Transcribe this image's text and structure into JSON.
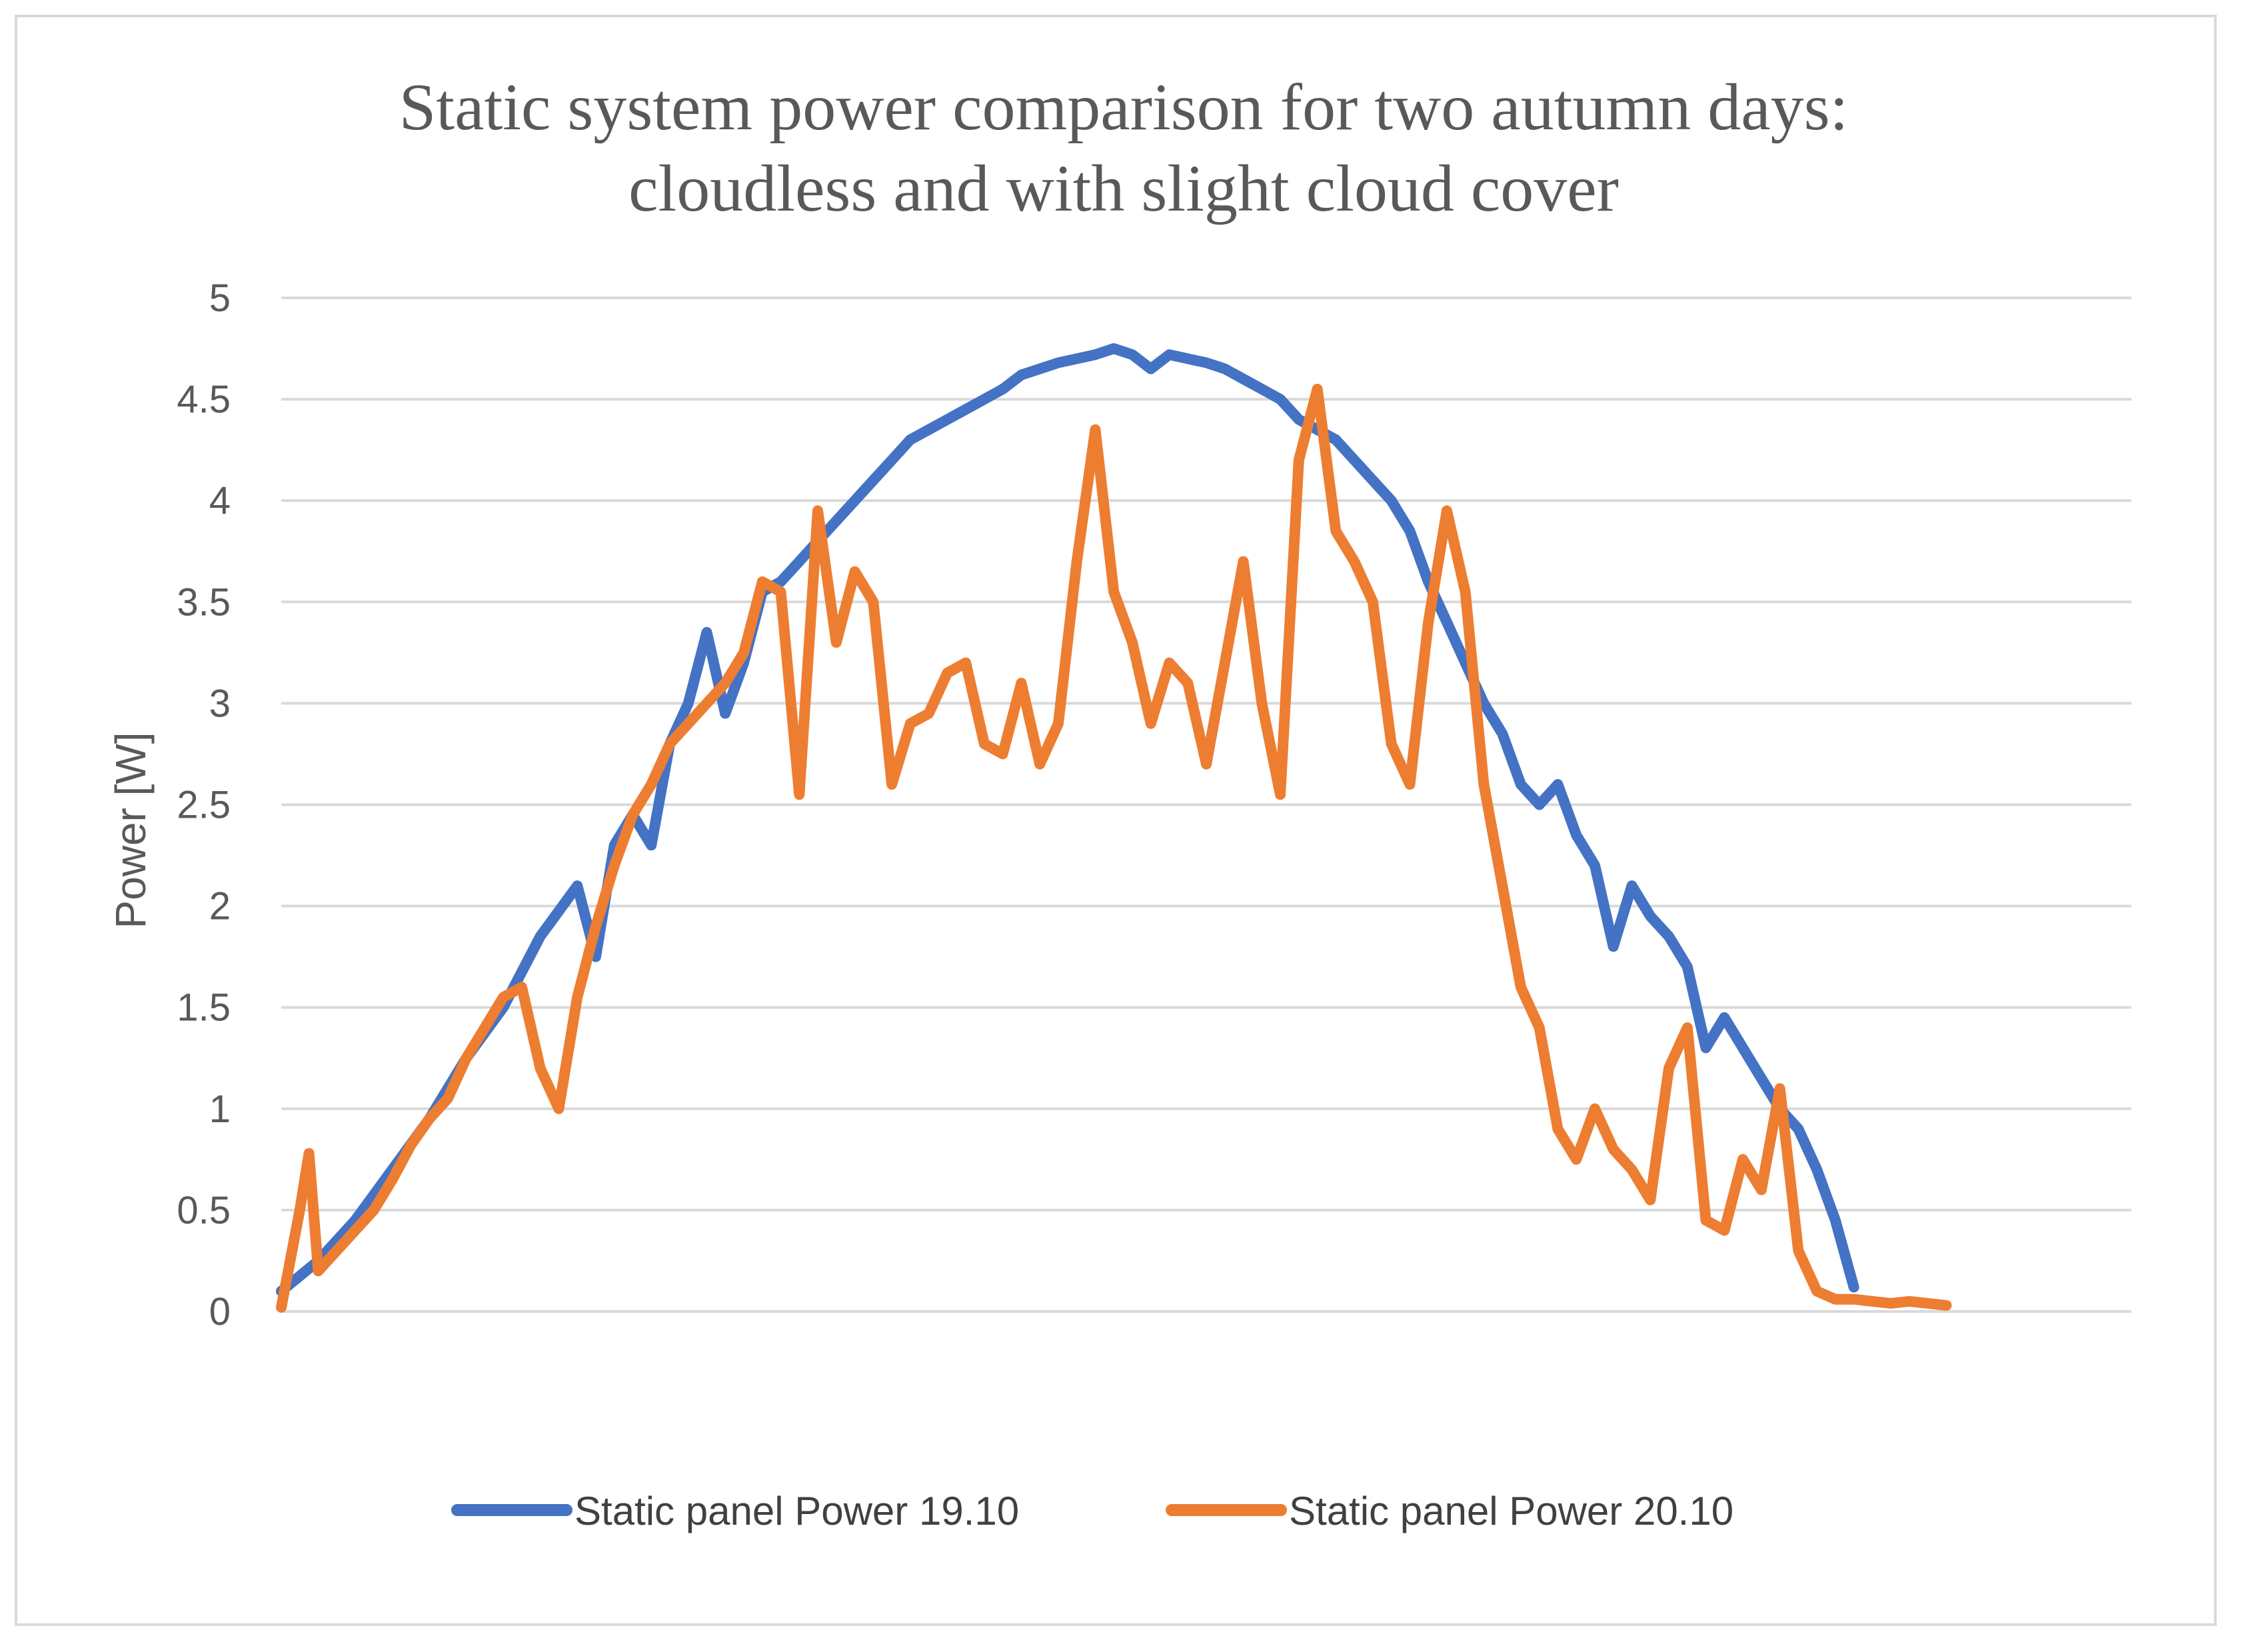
{
  "chart_data": {
    "type": "line",
    "title": "Static system power comparison for two autumn days: cloudless and with slight cloud cover",
    "title_lines": [
      "Static system power comparison for two autumn days:",
      "cloudless and with slight cloud cover"
    ],
    "xlabel": "",
    "ylabel": "Power [W]",
    "ylim": [
      0,
      5
    ],
    "yticks": [
      0,
      0.5,
      1,
      1.5,
      2,
      2.5,
      3,
      3.5,
      4,
      4.5,
      5
    ],
    "ytick_labels": [
      "0",
      "0.5",
      "1",
      "1.5",
      "2",
      "2.5",
      "3",
      "3.5",
      "4",
      "4.5",
      "5"
    ],
    "x_sample_count": 100,
    "xlim": [
      0,
      100
    ],
    "grid": true,
    "legend_position": "bottom",
    "series": [
      {
        "name": "Static panel Power 19.10",
        "color": "#4472C4",
        "x": [
          0,
          2,
          4,
          6,
          8,
          10,
          12,
          14,
          16,
          17,
          18,
          19,
          20,
          21,
          22,
          23,
          24,
          25,
          26,
          27,
          28,
          29,
          30,
          31,
          32,
          33,
          34,
          35,
          36,
          37,
          38,
          39,
          40,
          41,
          42,
          43,
          44,
          45,
          46,
          47,
          48,
          49,
          50,
          51,
          52,
          53,
          54,
          55,
          56,
          57,
          58,
          59,
          60,
          61,
          62,
          63,
          64,
          65,
          66,
          67,
          68,
          69,
          70,
          71,
          72,
          73,
          74,
          75,
          76,
          77,
          78,
          79,
          80,
          81,
          82,
          83,
          84,
          85
        ],
        "values": [
          0.1,
          0.25,
          0.45,
          0.7,
          0.95,
          1.25,
          1.5,
          1.85,
          2.1,
          1.75,
          2.3,
          2.45,
          2.3,
          2.8,
          3.0,
          3.35,
          2.95,
          3.2,
          3.55,
          3.6,
          3.7,
          3.8,
          3.9,
          4.0,
          4.1,
          4.2,
          4.3,
          4.35,
          4.4,
          4.45,
          4.5,
          4.55,
          4.62,
          4.65,
          4.68,
          4.7,
          4.72,
          4.75,
          4.72,
          4.65,
          4.72,
          4.7,
          4.68,
          4.65,
          4.6,
          4.55,
          4.5,
          4.4,
          4.35,
          4.3,
          4.2,
          4.1,
          4.0,
          3.85,
          3.6,
          3.4,
          3.2,
          3.0,
          2.85,
          2.6,
          2.5,
          2.6,
          2.35,
          2.2,
          1.8,
          2.1,
          1.95,
          1.85,
          1.7,
          1.3,
          1.45,
          1.3,
          1.15,
          1.0,
          0.9,
          0.7,
          0.45,
          0.12
        ]
      },
      {
        "name": "Static panel Power 20.10",
        "color": "#ED7D31",
        "x": [
          0,
          1,
          1.5,
          2,
          3,
          4,
          5,
          6,
          7,
          8,
          9,
          10,
          11,
          12,
          13,
          14,
          15,
          16,
          17,
          18,
          19,
          20,
          21,
          22,
          23,
          24,
          25,
          26,
          27,
          28,
          29,
          30,
          31,
          32,
          33,
          34,
          35,
          36,
          37,
          38,
          39,
          40,
          41,
          42,
          43,
          44,
          45,
          46,
          47,
          48,
          49,
          50,
          51,
          52,
          53,
          54,
          55,
          56,
          57,
          58,
          59,
          60,
          61,
          62,
          63,
          64,
          65,
          66,
          67,
          68,
          69,
          70,
          71,
          72,
          73,
          74,
          75,
          76,
          77,
          78,
          79,
          80,
          81,
          82,
          83
        ],
        "values": [
          0.02,
          0.5,
          0.78,
          0.2,
          0.3,
          0.4,
          0.5,
          0.65,
          0.82,
          0.95,
          1.05,
          1.25,
          1.4,
          1.55,
          1.6,
          1.2,
          1.0,
          1.55,
          1.9,
          2.2,
          2.45,
          2.6,
          2.8,
          2.9,
          3.0,
          3.1,
          3.25,
          3.6,
          3.55,
          2.55,
          3.95,
          3.3,
          3.65,
          3.5,
          2.6,
          2.9,
          2.95,
          3.15,
          3.2,
          2.8,
          2.75,
          3.1,
          2.7,
          2.9,
          3.7,
          4.35,
          3.55,
          3.3,
          2.9,
          3.2,
          3.1,
          2.7,
          3.2,
          3.7,
          3.0,
          2.55,
          4.2,
          4.55,
          3.85,
          3.7,
          3.5,
          2.8,
          2.6,
          3.4,
          3.95,
          3.55,
          2.6,
          2.1,
          1.6,
          1.4,
          0.9,
          0.75,
          1.0,
          0.8,
          0.7,
          0.55,
          1.2,
          1.4,
          0.45,
          0.4,
          0.75,
          0.6,
          1.1,
          0.3,
          0.1
        ],
        "tail": [
          {
            "x": 84,
            "y": 0.06
          },
          {
            "x": 85,
            "y": 0.06
          },
          {
            "x": 86,
            "y": 0.05
          },
          {
            "x": 87,
            "y": 0.04
          },
          {
            "x": 88,
            "y": 0.05
          },
          {
            "x": 89,
            "y": 0.04
          },
          {
            "x": 90,
            "y": 0.03
          }
        ]
      }
    ]
  }
}
